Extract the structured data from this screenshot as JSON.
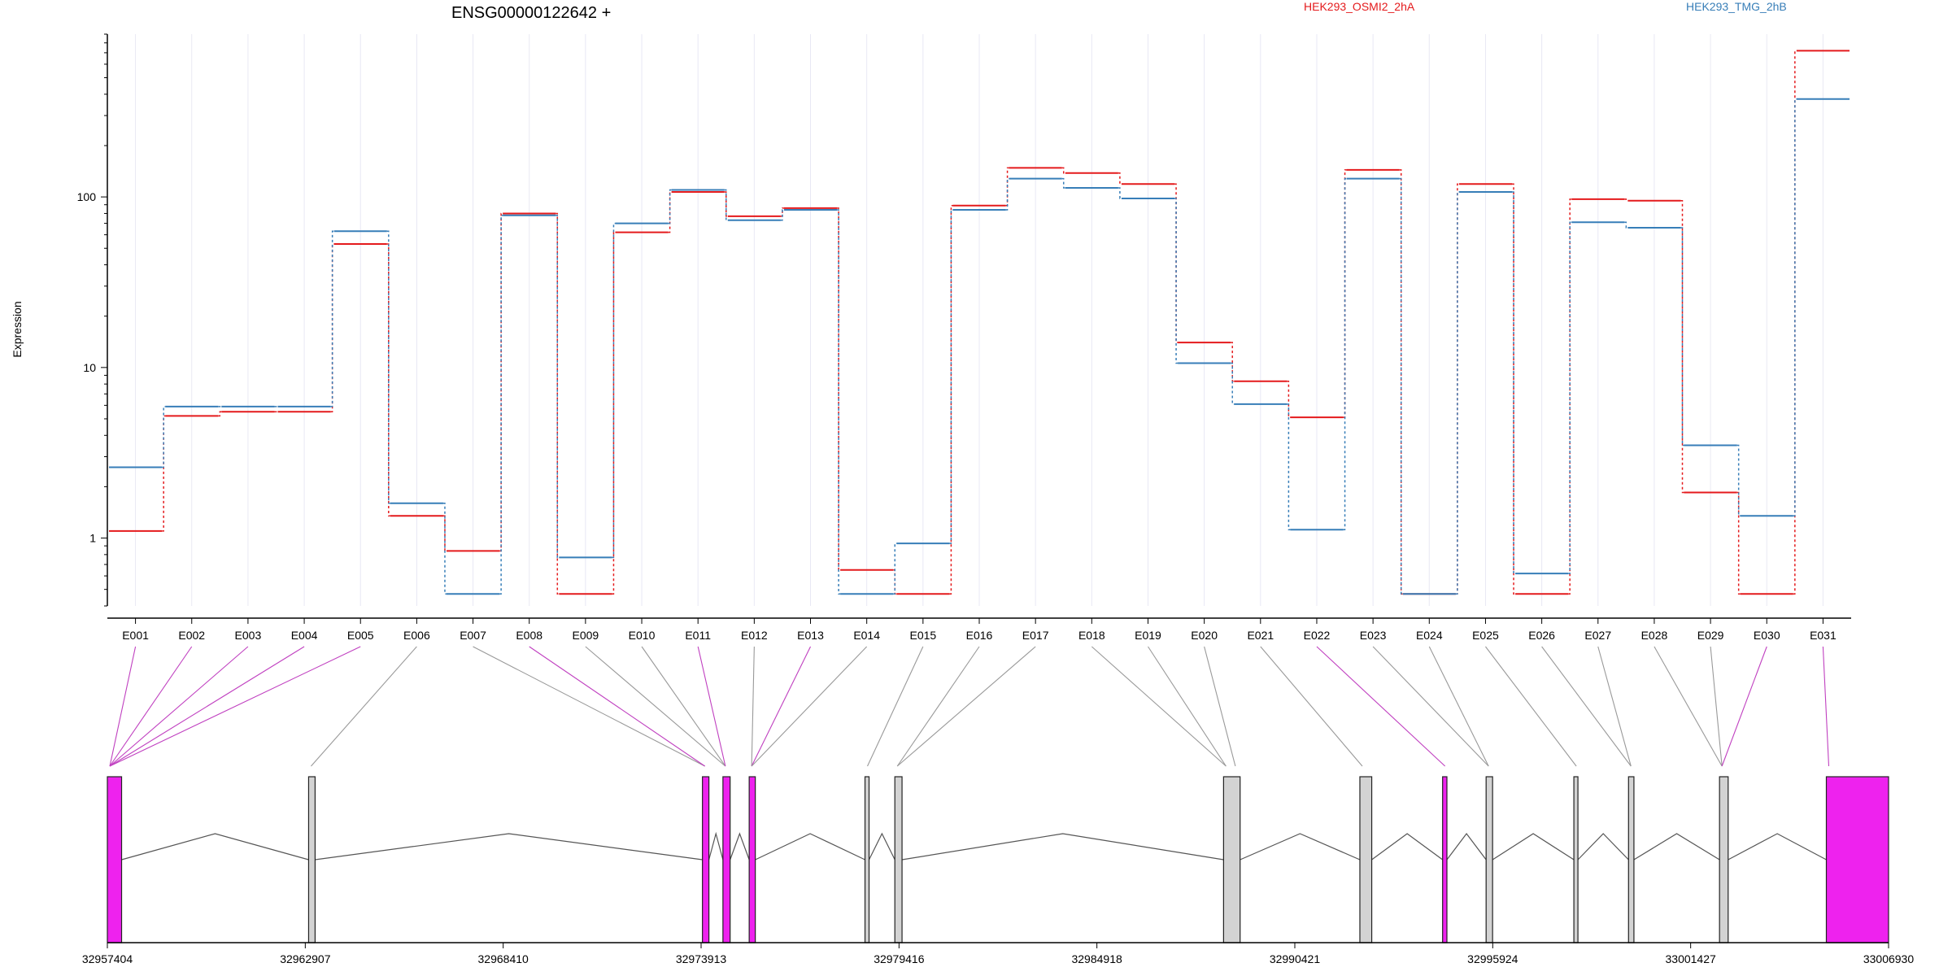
{
  "colors": {
    "series_a": "#e41a1c",
    "series_b": "#377eb8",
    "exon_highlight": "#ee22ee",
    "exon_default": "#d3d3d3",
    "grid": "#e8e8f4"
  },
  "chart_data": {
    "type": "line",
    "title": "ENSG00000122642 +",
    "xlabel": "",
    "ylabel": "Expression",
    "y_scale": "log",
    "ylim": [
      0.4,
      900
    ],
    "y_ticks": [
      1,
      10,
      100
    ],
    "y_tick_labels": [
      "1",
      "10",
      "100"
    ],
    "grid": true,
    "legend_position": "top",
    "categories": [
      "E001",
      "E002",
      "E003",
      "E004",
      "E005",
      "E006",
      "E007",
      "E008",
      "E009",
      "E010",
      "E011",
      "E012",
      "E013",
      "E014",
      "E015",
      "E016",
      "E017",
      "E018",
      "E019",
      "E020",
      "E021",
      "E022",
      "E023",
      "E024",
      "E025",
      "E026",
      "E027",
      "E028",
      "E029",
      "E030",
      "E031"
    ],
    "series": [
      {
        "name": "HEK293_OSMI2_2hA",
        "color": "#e41a1c",
        "values": [
          1.1,
          5.2,
          5.5,
          5.5,
          53,
          1.35,
          0.84,
          80,
          0.47,
          62,
          107,
          77,
          86,
          0.65,
          0.47,
          89,
          148,
          138,
          119,
          14,
          8.3,
          5.1,
          144,
          0.47,
          119,
          0.47,
          97,
          95,
          1.85,
          0.47,
          720
        ]
      },
      {
        "name": "HEK293_TMG_2hB",
        "color": "#377eb8",
        "values": [
          2.6,
          5.9,
          5.9,
          5.9,
          63,
          1.6,
          0.47,
          78,
          0.77,
          70,
          110,
          73,
          84,
          0.47,
          0.93,
          84,
          128,
          113,
          98,
          10.6,
          6.1,
          1.12,
          128,
          0.47,
          107,
          0.62,
          71,
          66,
          3.5,
          1.35,
          375
        ]
      }
    ],
    "exon_highlight": [
      true,
      true,
      true,
      true,
      true,
      false,
      false,
      true,
      false,
      false,
      true,
      false,
      true,
      false,
      false,
      false,
      false,
      false,
      false,
      false,
      false,
      true,
      false,
      false,
      false,
      false,
      false,
      false,
      false,
      true,
      true
    ],
    "gene_model": {
      "genomic_range": [
        32957404,
        33006930
      ],
      "axis_ticks": [
        32957404,
        32962907,
        32968410,
        32973913,
        32979416,
        32984918,
        32990421,
        32995924,
        33001427,
        33006930
      ],
      "exons": [
        {
          "start": 32957404,
          "end": 32957800,
          "highlight": true
        },
        {
          "start": 32963000,
          "end": 32963180,
          "highlight": false
        },
        {
          "start": 32973950,
          "end": 32974130,
          "highlight": true
        },
        {
          "start": 32974520,
          "end": 32974720,
          "highlight": true
        },
        {
          "start": 32975250,
          "end": 32975420,
          "highlight": true
        },
        {
          "start": 32978470,
          "end": 32978580,
          "highlight": false
        },
        {
          "start": 32979300,
          "end": 32979500,
          "highlight": false
        },
        {
          "start": 32988440,
          "end": 32988900,
          "highlight": false
        },
        {
          "start": 32992230,
          "end": 32992560,
          "highlight": false
        },
        {
          "start": 32994530,
          "end": 32994650,
          "highlight": true
        },
        {
          "start": 32995740,
          "end": 32995920,
          "highlight": false
        },
        {
          "start": 32998180,
          "end": 32998260,
          "highlight": false
        },
        {
          "start": 32999700,
          "end": 32999850,
          "highlight": false
        },
        {
          "start": 33002230,
          "end": 33002470,
          "highlight": false
        },
        {
          "start": 33005200,
          "end": 33006930,
          "highlight": true
        }
      ],
      "exon_group_positions": [
        32957404,
        32957404,
        32957404,
        32957404,
        32957404,
        32963000,
        32973950,
        32973950,
        32974520,
        32974520,
        32974520,
        32975250,
        32975250,
        32975250,
        32978470,
        32979300,
        32979300,
        32988440,
        32988440,
        32988700,
        32992230,
        32994530,
        32995740,
        32995740,
        32998180,
        32999700,
        32999700,
        33002230,
        33002230,
        33002230,
        33005200
      ]
    }
  }
}
